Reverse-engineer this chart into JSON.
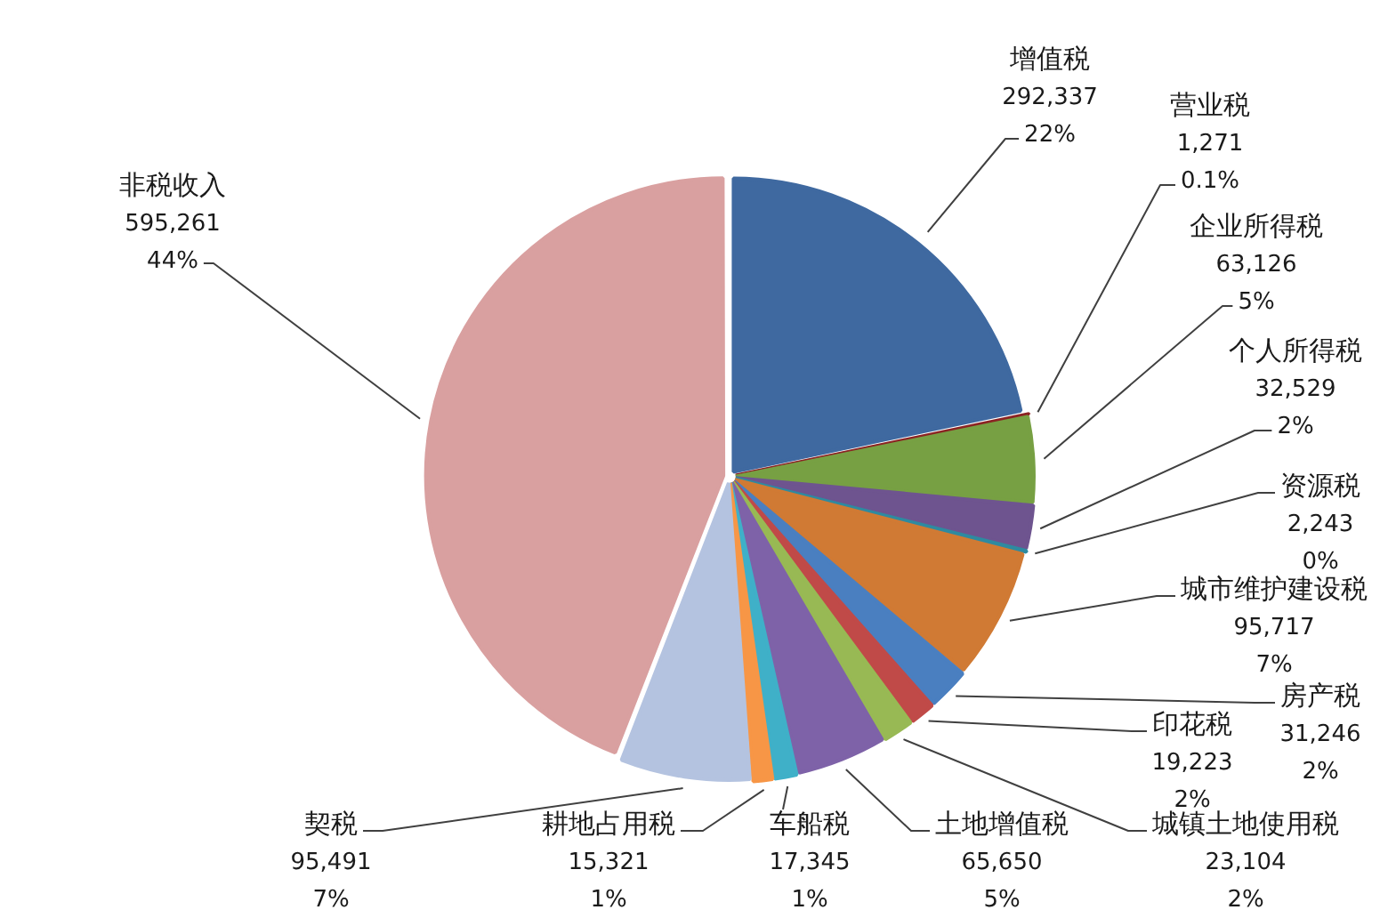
{
  "chart_data": {
    "type": "pie",
    "categories": [
      "增值税",
      "营业税",
      "企业所得税",
      "个人所得税",
      "资源税",
      "城市维护建设税",
      "房产税",
      "印花税",
      "城镇土地使用税",
      "土地增值税",
      "车船税",
      "耕地占用税",
      "契税",
      "非税收入"
    ],
    "values": [
      292337,
      1271,
      63126,
      32529,
      2243,
      95717,
      31246,
      19223,
      23104,
      65650,
      17345,
      15321,
      95491,
      595261
    ],
    "value_labels": [
      "292,337\n22%",
      "1,271\n0.1%",
      "63,126\n5%",
      "32,529\n2%",
      "2,243\n0%",
      "95,717\n7%",
      "31,246\n2%",
      "19,223\n2%",
      "23,104\n2%",
      "65,650\n5%",
      "17,345\n1%",
      "15,321\n1%",
      "95,491\n7%",
      "595,261\n44%"
    ],
    "colors": [
      "#3f69a0",
      "#8b2323",
      "#77a043",
      "#6e548f",
      "#2e8aa0",
      "#d07a34",
      "#4a7fc0",
      "#c04a48",
      "#98b954",
      "#7e62a8",
      "#3fb0c8",
      "#f79646",
      "#b4c3e0",
      "#d9a0a0"
    ]
  }
}
